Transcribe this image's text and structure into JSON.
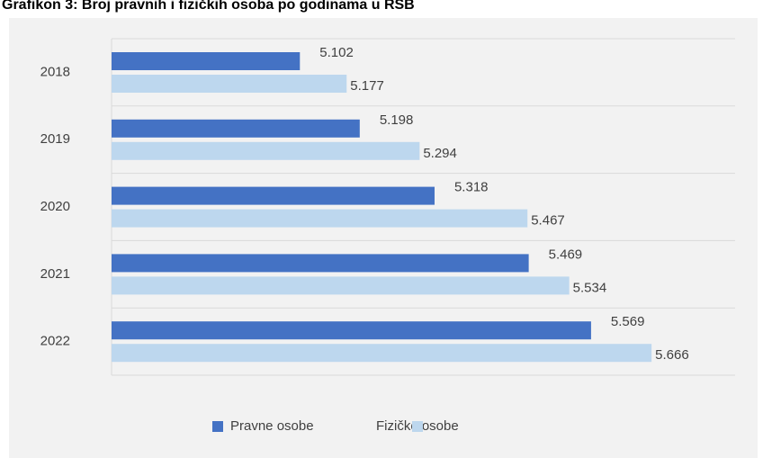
{
  "chart_data": {
    "type": "bar",
    "orientation": "horizontal",
    "title": "Grafikon 3: Broj pravnih i fizičkih osoba po godinama u RSB",
    "categories": [
      "2018",
      "2019",
      "2020",
      "2021",
      "2022"
    ],
    "series": [
      {
        "name": "Pravne osobe",
        "color": "#4472c4",
        "values": [
          5.102,
          5.198,
          5.318,
          5.469,
          5.569
        ]
      },
      {
        "name": "Fizičke osobe",
        "color": "#bdd7ee",
        "values": [
          5.177,
          5.294,
          5.467,
          5.534,
          5.666
        ]
      }
    ],
    "xlim": [
      4.8,
      5.8
    ],
    "legend": "bottom"
  }
}
